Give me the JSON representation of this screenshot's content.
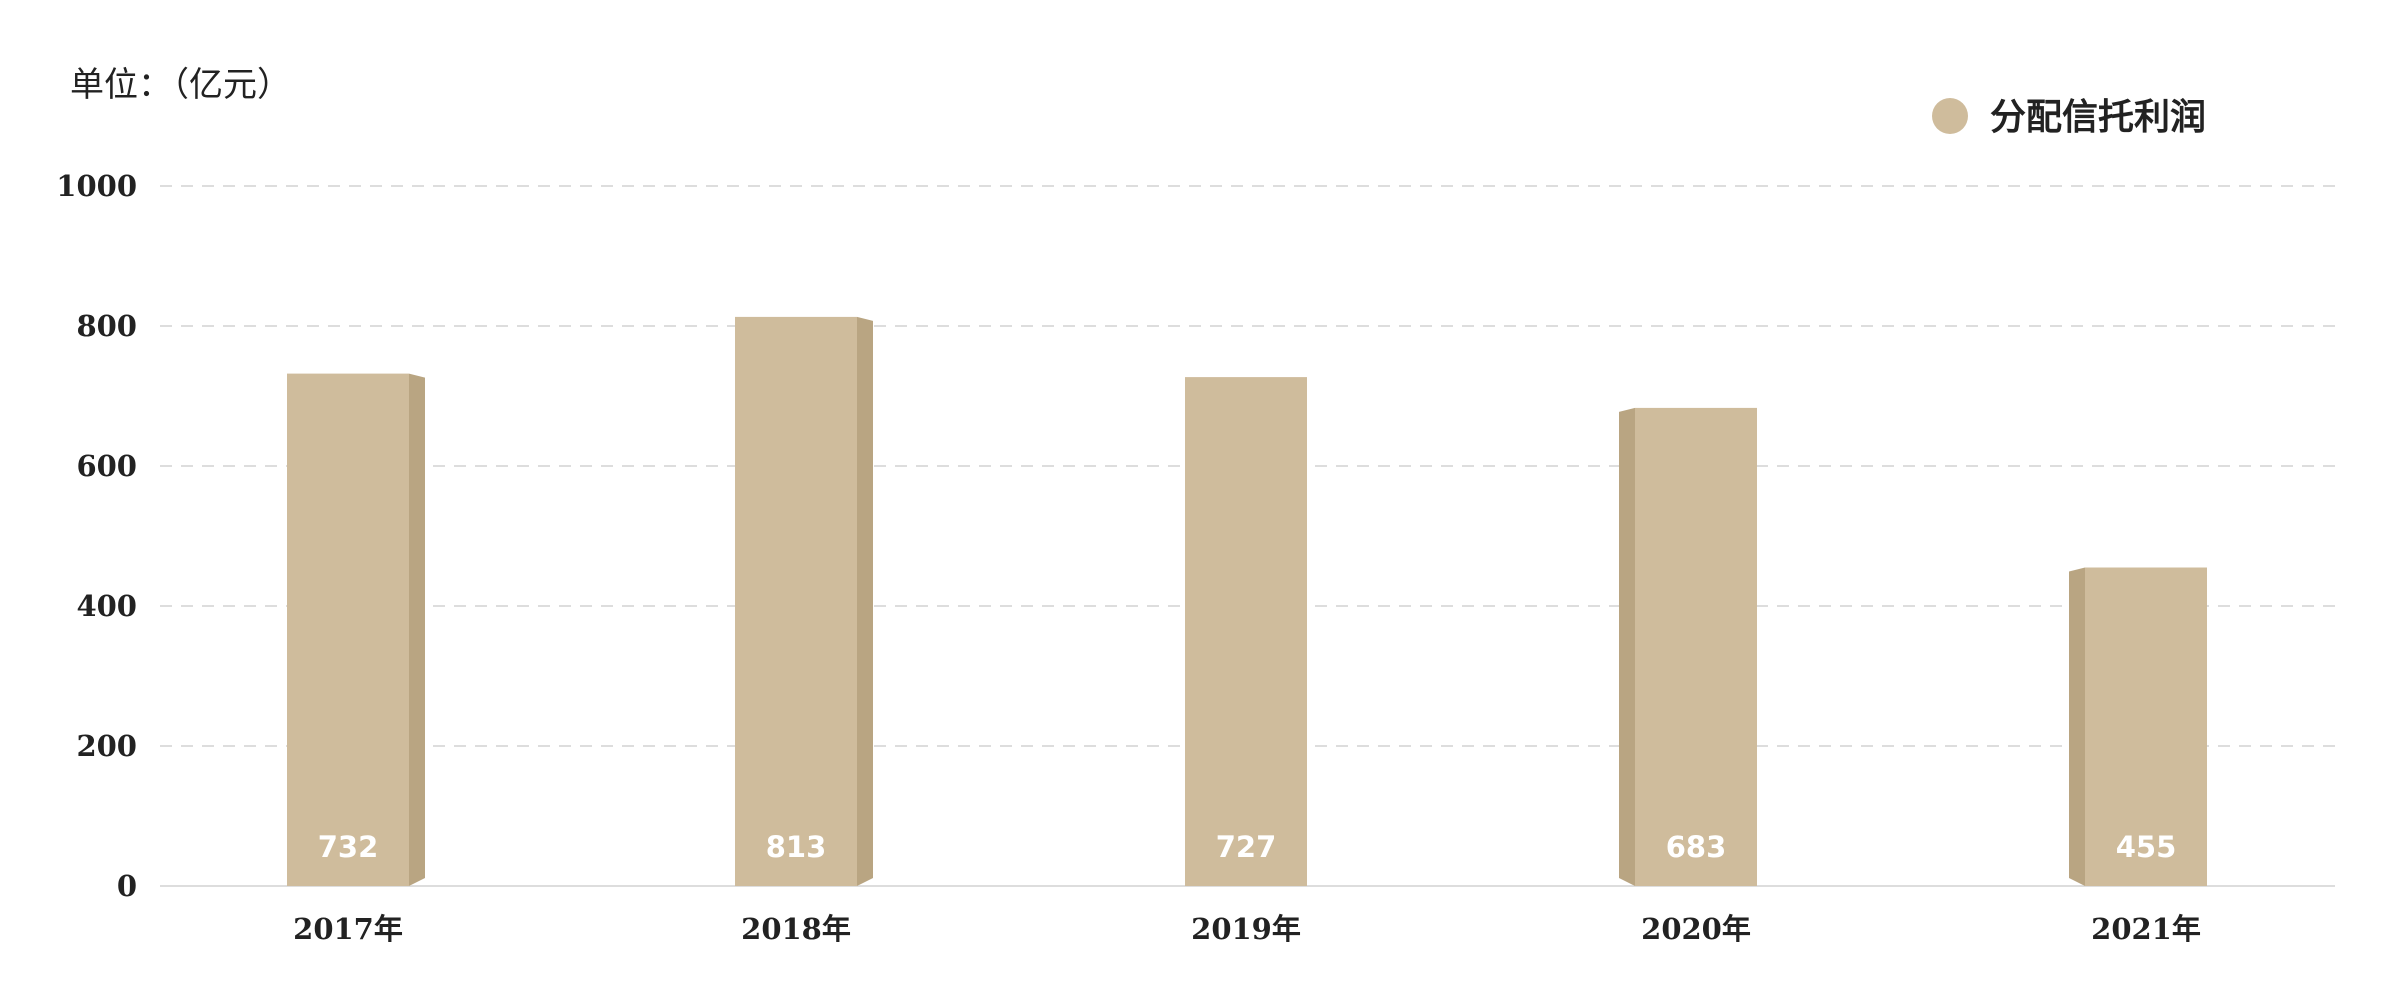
{
  "unit_label": "单位：（亿元）",
  "chart_data": {
    "type": "bar",
    "categories": [
      "2017年",
      "2018年",
      "2019年",
      "2020年",
      "2021年"
    ],
    "series": [
      {
        "name": "分配信托利润",
        "values": [
          732,
          813,
          727,
          683,
          455
        ],
        "data_labels": [
          "732",
          "813",
          "727",
          "683",
          "455"
        ]
      }
    ],
    "ylim": [
      0,
      1000
    ],
    "yticks": [
      0,
      200,
      400,
      600,
      800,
      1000
    ],
    "ytick_labels": [
      "0",
      "200",
      "400",
      "600",
      "800",
      "1000"
    ],
    "grid": true,
    "legend_position": "top-right",
    "colors": {
      "bar": "#cfbc9c",
      "bar_side": "#b9a582",
      "grid": "#dddddd",
      "axis": "#dddddd",
      "text": "#222222",
      "value_text": "#ffffff"
    }
  }
}
